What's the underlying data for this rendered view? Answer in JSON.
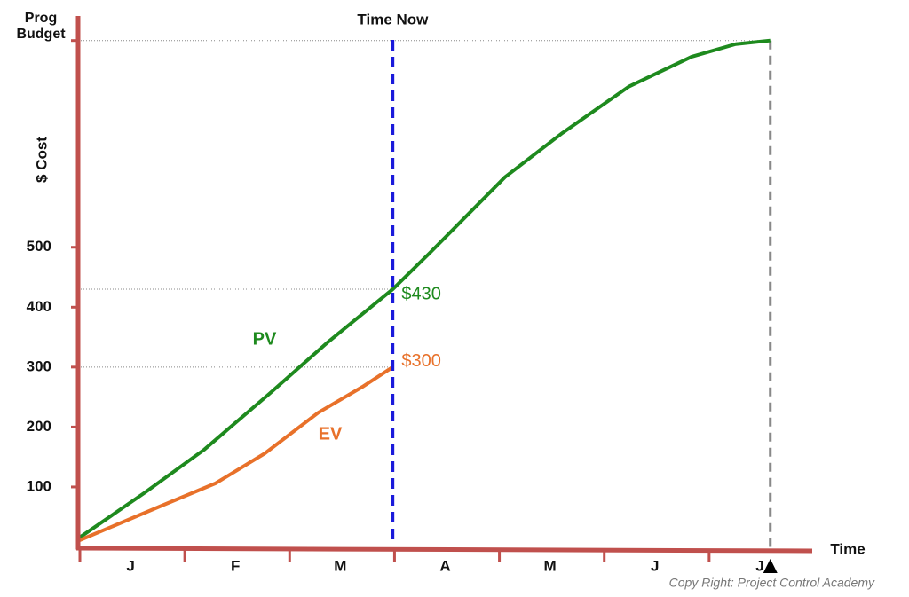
{
  "chart_data": {
    "type": "line",
    "y_label": "$ Cost",
    "x_label": "Time",
    "categories": [
      "J",
      "F",
      "M",
      "A",
      "M",
      "J",
      "J"
    ],
    "xlim": [
      0,
      7
    ],
    "ylim": [
      0,
      886
    ],
    "yticks": [
      100,
      200,
      300,
      400,
      500
    ],
    "budget": {
      "label": "Prog Budget",
      "value": 845
    },
    "time_now": {
      "label": "Time Now",
      "x": 3
    },
    "completion_x": 6.6,
    "series": [
      {
        "name": "PV",
        "color": "#1e8a1e",
        "x": [
          0,
          0.64,
          1.2,
          1.82,
          2.37,
          3,
          3.35,
          4.07,
          4.62,
          5.25,
          5.85,
          6.27,
          6.6
        ],
        "values": [
          14,
          91,
          162,
          255,
          340,
          430,
          490,
          617,
          691,
          768,
          818,
          839,
          845
        ]
      },
      {
        "name": "EV",
        "color": "#e8712a",
        "x": [
          0,
          0.8,
          1.31,
          1.78,
          2.29,
          2.71,
          3
        ],
        "values": [
          10,
          69,
          106,
          156,
          224,
          267,
          300
        ]
      }
    ],
    "annotations": [
      {
        "text": "$430",
        "x": 3,
        "y": 430,
        "color": "#1e8a1e"
      },
      {
        "text": "$300",
        "x": 3,
        "y": 300,
        "color": "#e8712a"
      }
    ],
    "footer": "Copy Right: Project Control Academy"
  }
}
